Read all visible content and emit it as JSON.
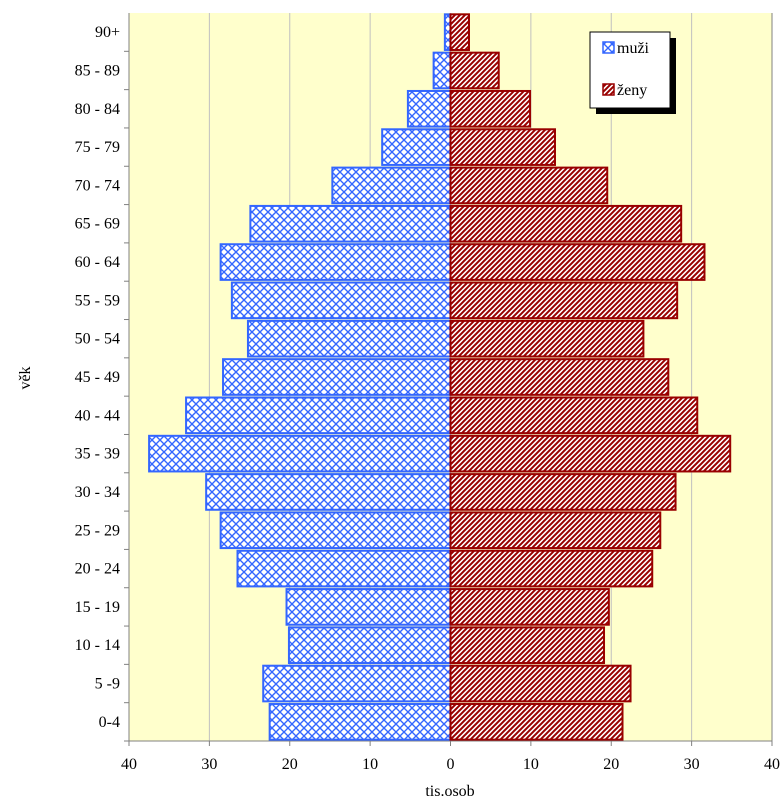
{
  "chart_data": {
    "type": "bar",
    "orientation": "horizontal",
    "categories": [
      "0-4",
      "5 -9",
      "10 - 14",
      "15 - 19",
      "20 - 24",
      "25 - 29",
      "30 - 34",
      "35 - 39",
      "40 - 44",
      "45 - 49",
      "50 - 54",
      "55 - 59",
      "60 - 64",
      "65 - 69",
      "70 - 74",
      "75 - 79",
      "80 - 84",
      "85 - 89",
      "90+"
    ],
    "series": [
      {
        "name": "muži",
        "side": "left",
        "values": [
          22.5,
          23.3,
          20.1,
          20.4,
          26.5,
          28.6,
          30.4,
          37.5,
          32.9,
          28.3,
          25.2,
          27.2,
          28.6,
          24.9,
          14.7,
          8.5,
          5.3,
          2.1,
          0.7
        ],
        "color": "#3366ff",
        "fill": "#ffffff",
        "pattern": "crosshatch"
      },
      {
        "name": "ženy",
        "side": "right",
        "values": [
          21.4,
          22.4,
          19.1,
          19.7,
          25.1,
          26.1,
          28.0,
          34.8,
          30.7,
          27.1,
          24.0,
          28.2,
          31.6,
          28.7,
          19.5,
          13.0,
          9.9,
          6.0,
          2.3
        ],
        "color": "#990000",
        "fill": "#ffffff",
        "pattern": "diagonal"
      }
    ],
    "xlabel": "tis.osob",
    "ylabel": "věk",
    "xticks": [
      {
        "value": -40,
        "label": "40"
      },
      {
        "value": -30,
        "label": "30"
      },
      {
        "value": -20,
        "label": "20"
      },
      {
        "value": -10,
        "label": "10"
      },
      {
        "value": 0,
        "label": "0"
      },
      {
        "value": 10,
        "label": "10"
      },
      {
        "value": 20,
        "label": "20"
      },
      {
        "value": 30,
        "label": "30"
      },
      {
        "value": 40,
        "label": "40"
      }
    ],
    "xlim": [
      -40,
      40
    ],
    "grid": "vertical",
    "plot_background": "#ffffcc",
    "legend": "top-right"
  }
}
